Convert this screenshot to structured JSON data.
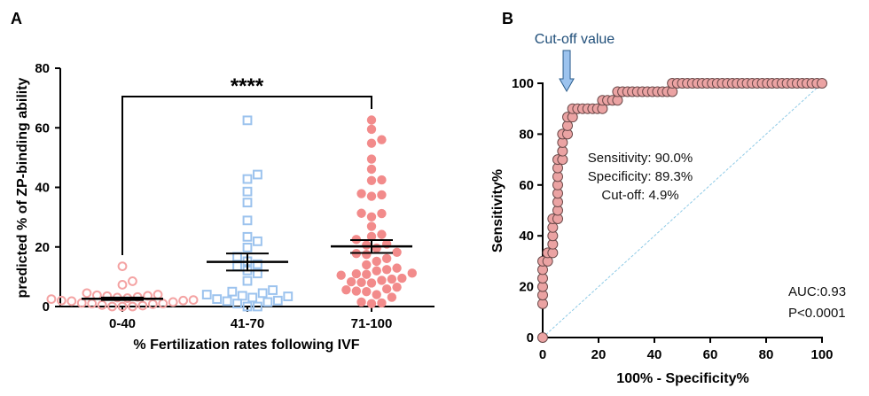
{
  "chart_data": [
    {
      "panel_label": "A",
      "type": "scatter",
      "subtype": "dot-plot with mean ± SEM",
      "xlabel": "% Fertilization rates following IVF",
      "ylabel": "predicted % of ZP-binding ability",
      "ylim": [
        0,
        80
      ],
      "yticks": [
        "0",
        "20",
        "40",
        "60",
        "80"
      ],
      "categories": [
        "0-40",
        "41-70",
        "71-100"
      ],
      "significance": {
        "from": "0-40",
        "to": "71-100",
        "label": "****"
      },
      "series": [
        {
          "category": "0-40",
          "marker": "open-circle",
          "color": "#f4a3a3",
          "mean": 2.6,
          "sem": [
            2.2,
            3.0
          ],
          "values": [
            13.5,
            8.5,
            7.3,
            4.5,
            4,
            3.8,
            3.6,
            3.5,
            3.2,
            3,
            2.8,
            2.5,
            2.2,
            2,
            2,
            1.8,
            1.5,
            1.2,
            1,
            1,
            0.8,
            0.5,
            0.3,
            0,
            0,
            0
          ]
        },
        {
          "category": "41-70",
          "marker": "open-square",
          "color": "#9cc3ee",
          "mean": 15,
          "sem": [
            12.1,
            17.8
          ],
          "values": [
            62.5,
            44.3,
            42.8,
            38.6,
            34.9,
            28.9,
            23.4,
            21.9,
            19.8,
            16.7,
            15.2,
            14.2,
            13.5,
            12.1,
            11.1,
            8.6,
            5.5,
            5,
            4.5,
            4,
            3.6,
            3.4,
            3,
            2.5,
            2,
            1.8,
            1.5,
            1,
            0,
            0
          ]
        },
        {
          "category": "71-100",
          "marker": "filled-circle",
          "color": "#f28b8b",
          "mean": 20.2,
          "sem": [
            18,
            22.3
          ],
          "values": [
            62.6,
            59.5,
            56,
            54.8,
            49.5,
            46.1,
            42.5,
            42.3,
            37.9,
            37.5,
            37,
            31.3,
            30.1,
            31.2,
            26.9,
            24.2,
            23.5,
            22.5,
            21,
            20.6,
            19.6,
            18.2,
            17.8,
            17.5,
            16.1,
            15.2,
            14,
            12.9,
            12.4,
            12,
            11.2,
            10.8,
            11,
            10.5,
            9.5,
            9.2,
            8.8,
            8.3,
            8.1,
            7.9,
            6.5,
            5.9,
            5.6,
            5.2,
            5,
            4,
            3.1,
            1.5,
            1.2,
            1
          ]
        }
      ]
    },
    {
      "panel_label": "B",
      "type": "line",
      "subtype": "ROC curve",
      "xlabel": "100% - Specificity%",
      "ylabel": "Sensitivity%",
      "xlim": [
        0,
        100
      ],
      "ylim": [
        0,
        100
      ],
      "xticks": [
        "0",
        "20",
        "40",
        "60",
        "80",
        "100"
      ],
      "yticks": [
        "0",
        "20",
        "40",
        "60",
        "80",
        "100"
      ],
      "marker_color": "#eba3a3",
      "reference_line_color": "#8ecae6",
      "cutoff_label": "Cut-off value",
      "cutoff_arrow_color": "#9cc3ee",
      "cutoff_x": 8.9,
      "annotations": [
        "Sensitivity: 90.0%",
        "Specificity: 89.3%",
        "Cut-off: 4.9%"
      ],
      "auc_text": "AUC:0.93",
      "p_text": "P<0.0001",
      "points": [
        [
          0,
          0
        ],
        [
          0,
          13.3
        ],
        [
          0,
          16.7
        ],
        [
          0,
          20
        ],
        [
          0,
          23.3
        ],
        [
          0,
          26.7
        ],
        [
          0,
          30
        ],
        [
          1.8,
          30
        ],
        [
          1.8,
          33.3
        ],
        [
          3.6,
          33.3
        ],
        [
          3.6,
          36.7
        ],
        [
          3.6,
          40
        ],
        [
          3.6,
          43.3
        ],
        [
          3.6,
          46.7
        ],
        [
          5.4,
          46.7
        ],
        [
          5.4,
          50
        ],
        [
          5.4,
          53.3
        ],
        [
          5.4,
          56.7
        ],
        [
          5.4,
          60
        ],
        [
          5.4,
          63.3
        ],
        [
          5.4,
          66.7
        ],
        [
          5.4,
          70
        ],
        [
          7.1,
          70
        ],
        [
          7.1,
          73.3
        ],
        [
          7.1,
          76.7
        ],
        [
          7.1,
          80
        ],
        [
          8.9,
          80
        ],
        [
          8.9,
          83.3
        ],
        [
          8.9,
          86.7
        ],
        [
          10.7,
          86.7
        ],
        [
          10.7,
          90
        ],
        [
          12.5,
          90
        ],
        [
          14.3,
          90
        ],
        [
          16.1,
          90
        ],
        [
          17.9,
          90
        ],
        [
          19.6,
          90
        ],
        [
          21.4,
          90
        ],
        [
          21.4,
          93.3
        ],
        [
          23.2,
          93.3
        ],
        [
          25,
          93.3
        ],
        [
          26.8,
          93.3
        ],
        [
          26.8,
          96.7
        ],
        [
          28.6,
          96.7
        ],
        [
          30.4,
          96.7
        ],
        [
          32.1,
          96.7
        ],
        [
          33.9,
          96.7
        ],
        [
          35.7,
          96.7
        ],
        [
          37.5,
          96.7
        ],
        [
          39.3,
          96.7
        ],
        [
          41.1,
          96.7
        ],
        [
          42.9,
          96.7
        ],
        [
          44.6,
          96.7
        ],
        [
          46.4,
          96.7
        ],
        [
          46.4,
          100
        ],
        [
          48.2,
          100
        ],
        [
          50,
          100
        ],
        [
          51.8,
          100
        ],
        [
          53.6,
          100
        ],
        [
          55.4,
          100
        ],
        [
          57.1,
          100
        ],
        [
          58.9,
          100
        ],
        [
          60.7,
          100
        ],
        [
          62.5,
          100
        ],
        [
          64.3,
          100
        ],
        [
          66.1,
          100
        ],
        [
          67.9,
          100
        ],
        [
          69.6,
          100
        ],
        [
          71.4,
          100
        ],
        [
          73.2,
          100
        ],
        [
          75,
          100
        ],
        [
          76.8,
          100
        ],
        [
          78.6,
          100
        ],
        [
          80.4,
          100
        ],
        [
          82.1,
          100
        ],
        [
          83.9,
          100
        ],
        [
          85.7,
          100
        ],
        [
          87.5,
          100
        ],
        [
          89.3,
          100
        ],
        [
          91.1,
          100
        ],
        [
          92.9,
          100
        ],
        [
          94.6,
          100
        ],
        [
          96.4,
          100
        ],
        [
          98.2,
          100
        ],
        [
          100,
          100
        ]
      ]
    }
  ]
}
